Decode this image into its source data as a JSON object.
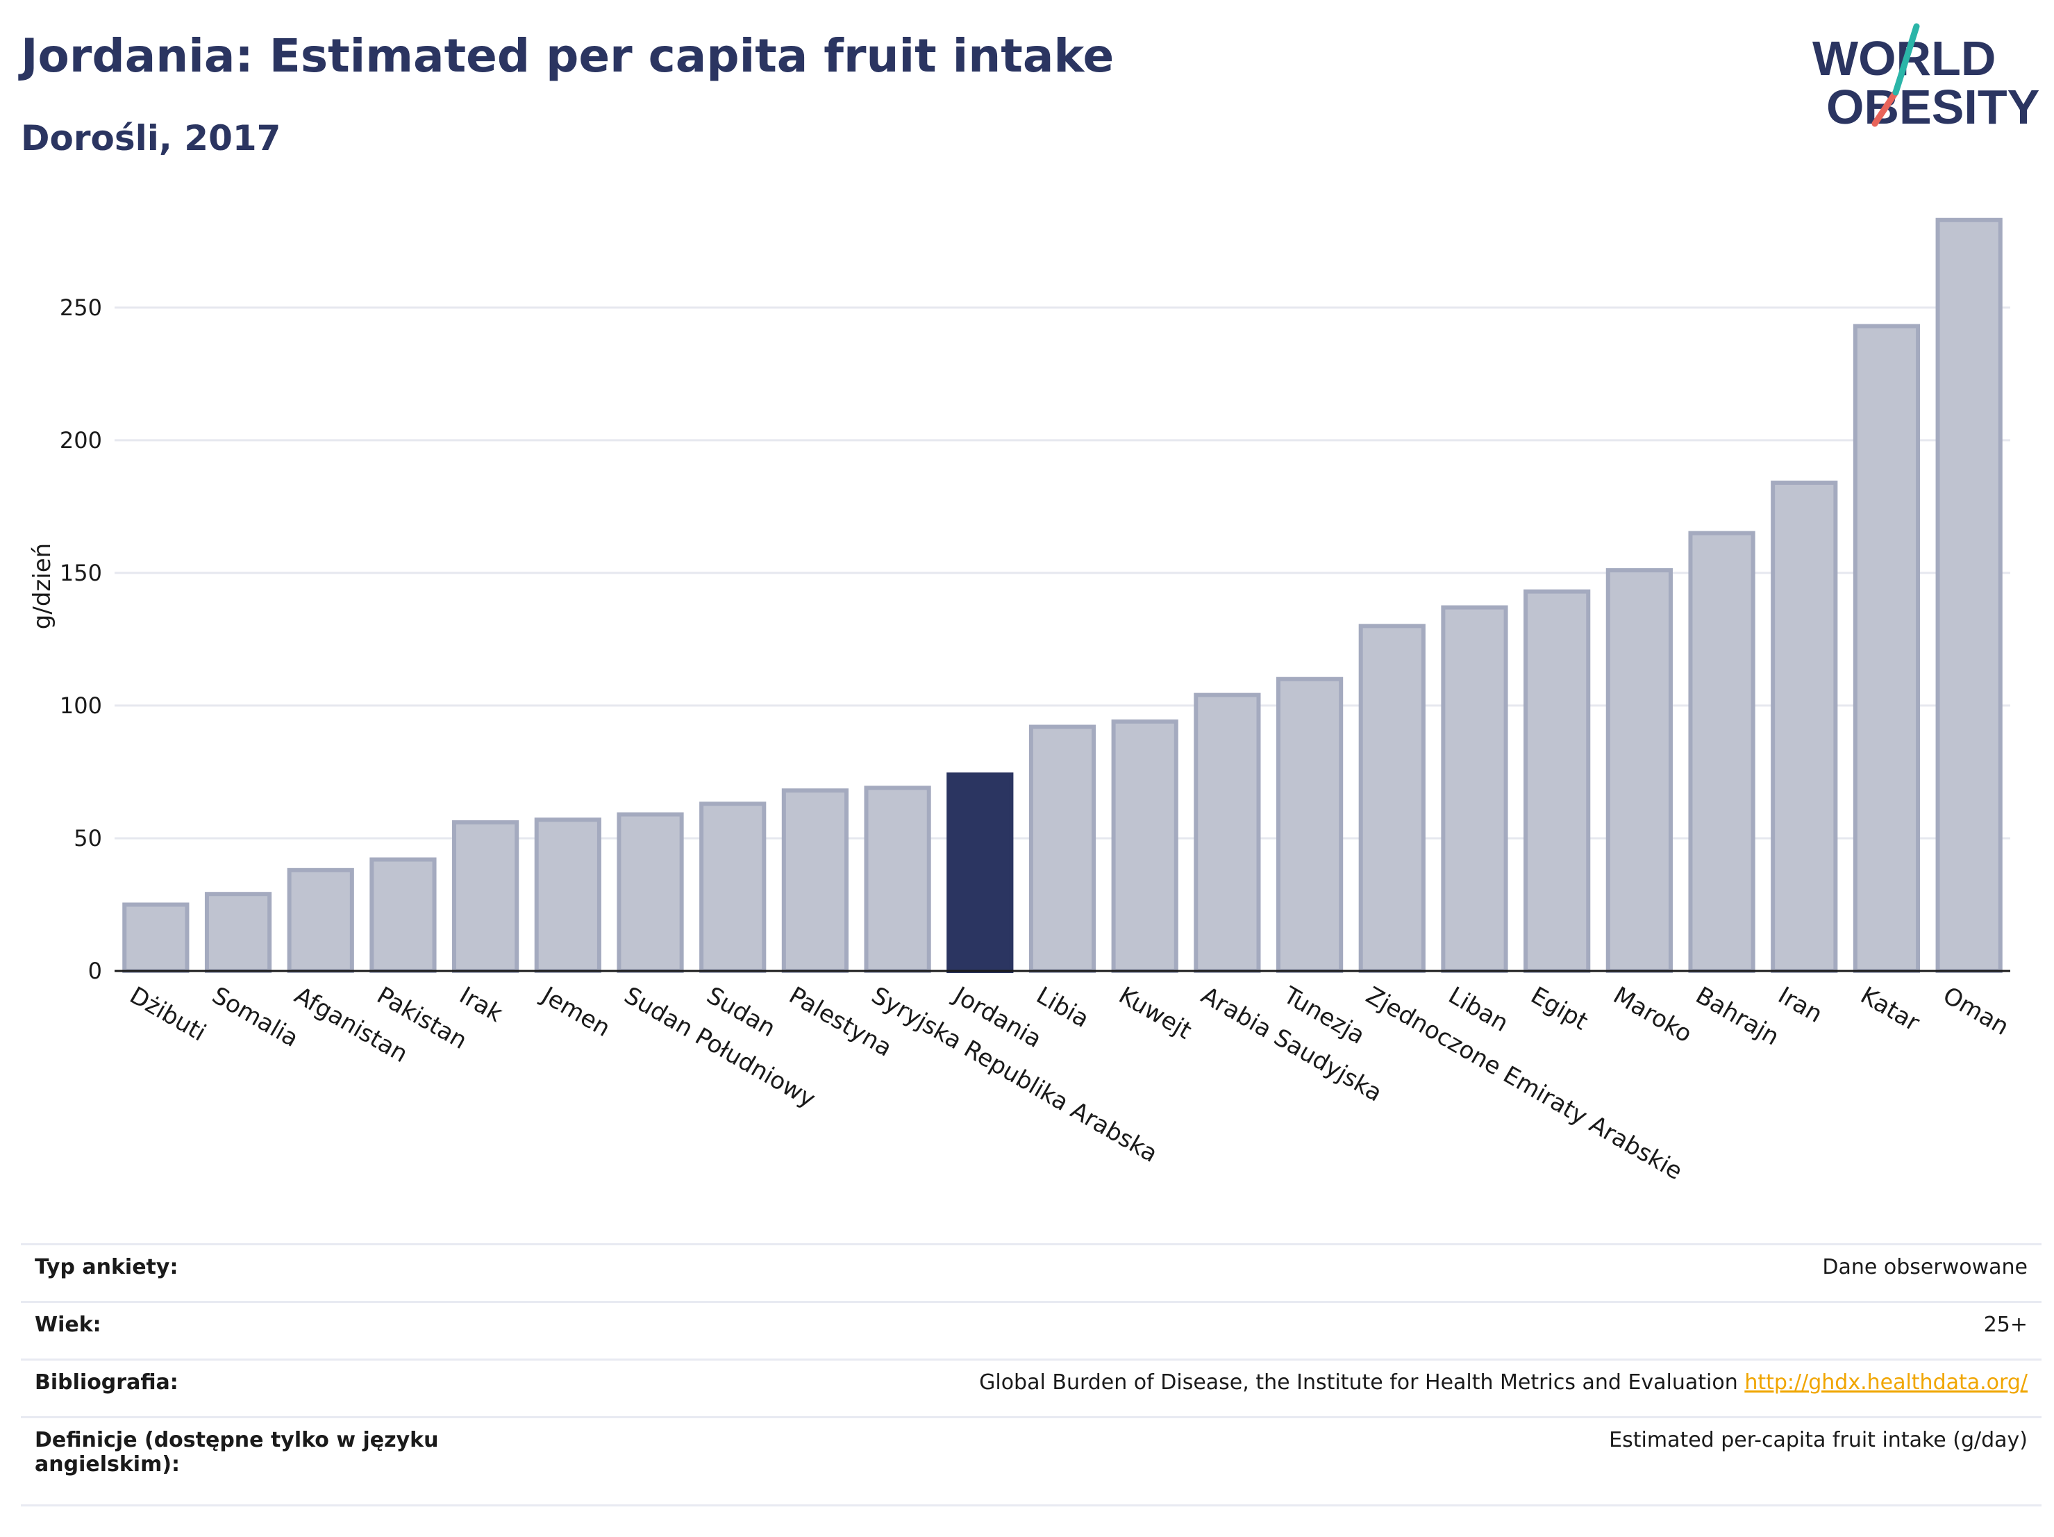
{
  "header": {
    "title": "Jordania: Estimated per capita fruit intake",
    "subtitle": "Dorośli, 2017"
  },
  "logo": {
    "line1": "WORLD",
    "line2": "OBESITY",
    "colors": {
      "text": "#2b3561",
      "slash_teal": "#2bb5a8",
      "slash_red": "#e8645a"
    }
  },
  "colors": {
    "bar_default": "#bfc3d0",
    "bar_border": "#a4aabf",
    "bar_highlight": "#2b3561",
    "grid": "#e6e8ef",
    "axis_text": "#1a1a1a",
    "link": "#f0a500"
  },
  "chart_data": {
    "type": "bar",
    "ylabel": "g/dzień",
    "ylim": [
      0,
      290
    ],
    "yticks": [
      0,
      50,
      100,
      150,
      200,
      250
    ],
    "grid": true,
    "highlight": "Jordania",
    "categories": [
      "Dżibuti",
      "Somalia",
      "Afganistan",
      "Pakistan",
      "Irak",
      "Jemen",
      "Sudan Południowy",
      "Sudan",
      "Palestyna",
      "Syryjska Republika Arabska",
      "Jordania",
      "Libia",
      "Kuwejt",
      "Arabia Saudyjska",
      "Tunezja",
      "Zjednoczone Emiraty Arabskie",
      "Liban",
      "Egipt",
      "Maroko",
      "Bahrajn",
      "Iran",
      "Katar",
      "Oman"
    ],
    "values": [
      25,
      29,
      38,
      42,
      56,
      57,
      59,
      63,
      68,
      69,
      74,
      92,
      94,
      104,
      110,
      130,
      137,
      143,
      151,
      165,
      184,
      243,
      283
    ]
  },
  "info": [
    {
      "key": "Typ ankiety:",
      "value": "Dane obserwowane"
    },
    {
      "key": "Wiek:",
      "value": "25+"
    },
    {
      "key": "Bibliografia:",
      "value": "Global Burden of Disease, the Institute for Health Metrics and Evaluation",
      "link": "http://ghdx.healthdata.org/"
    },
    {
      "key": "Definicje (dostępne tylko w języku angielskim):",
      "value": "Estimated per-capita fruit intake (g/day)"
    }
  ]
}
